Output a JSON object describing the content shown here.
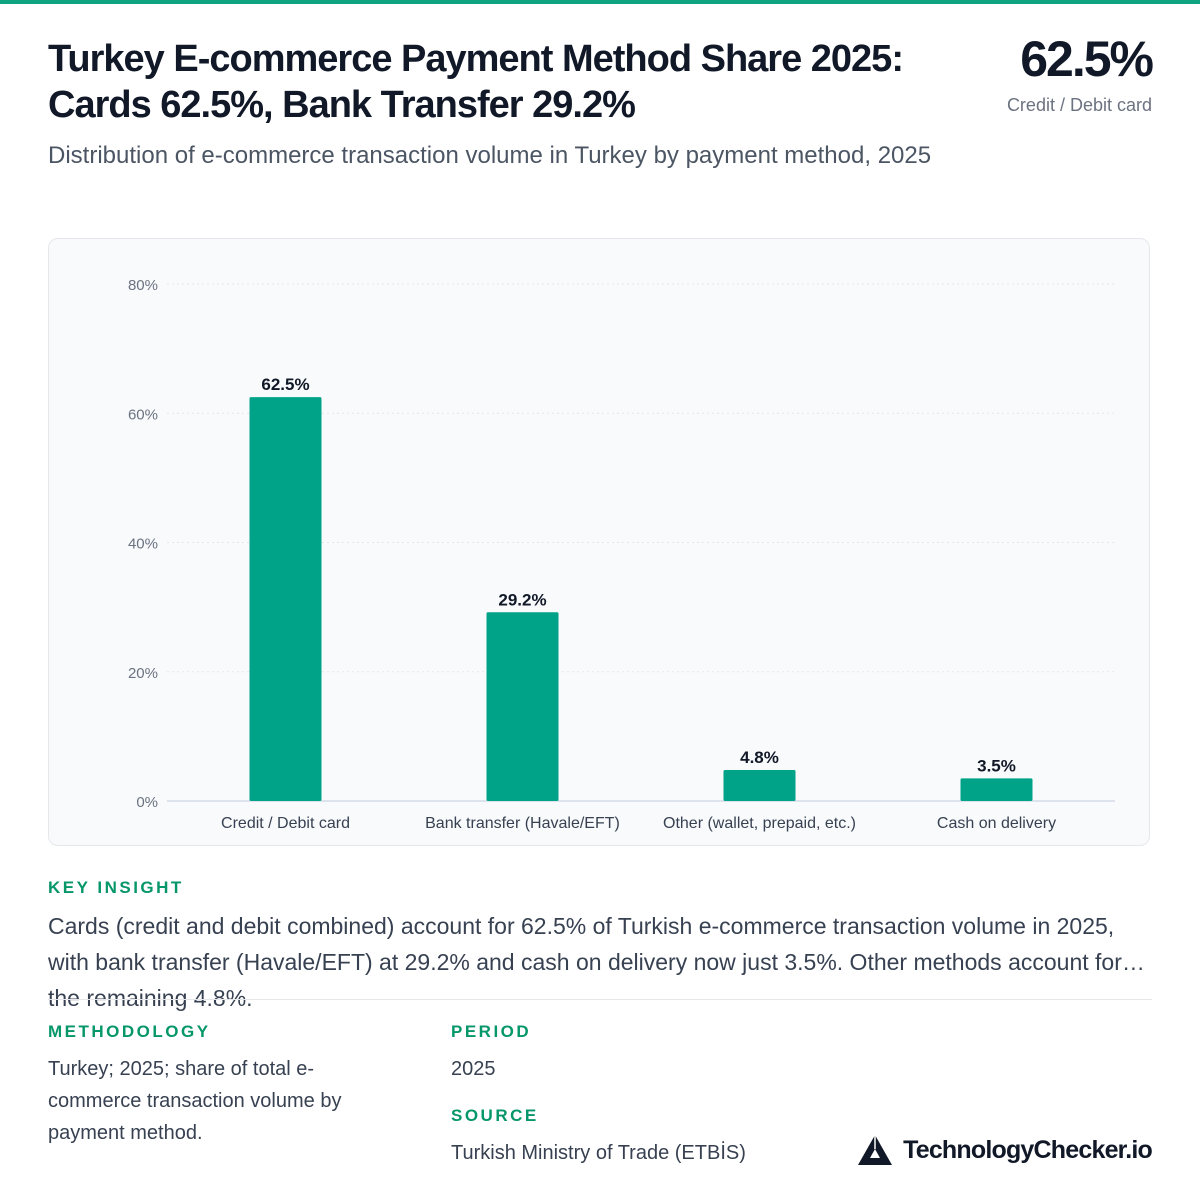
{
  "header": {
    "title": "Turkey E-commerce Payment Method Share 2025: Cards 62.5%, Bank Transfer 29.2%",
    "subtitle": "Distribution of e-commerce transaction volume in Turkey by payment method, 2025",
    "kpi_value": "62.5%",
    "kpi_label": "Credit / Debit card"
  },
  "colors": {
    "accent": "#059669",
    "bar": "#00a388",
    "topline": "#10a37f"
  },
  "chart_data": {
    "type": "bar",
    "categories": [
      "Credit / Debit card",
      "Bank transfer (Havale/EFT)",
      "Other (wallet, prepaid, etc.)",
      "Cash on delivery"
    ],
    "values": [
      62.5,
      29.2,
      4.8,
      3.5
    ],
    "value_labels": [
      "62.5%",
      "29.2%",
      "4.8%",
      "3.5%"
    ],
    "ylim": [
      0,
      80
    ],
    "yticks": [
      0,
      20,
      40,
      60,
      80
    ],
    "ytick_labels": [
      "0%",
      "20%",
      "40%",
      "60%",
      "80%"
    ],
    "grid": true
  },
  "insight": {
    "label": "KEY INSIGHT",
    "text": "Cards (credit and debit combined) account for 62.5% of Turkish e-commerce transaction volume in 2025, with bank transfer (Havale/EFT) at 29.2% and cash on delivery now just 3.5%. Other methods account for the remaining 4.8%."
  },
  "footer": {
    "methodology_label": "METHODOLOGY",
    "methodology_text": "Turkey; 2025; share of total e-commerce transaction volume by payment method.",
    "period_label": "PERIOD",
    "period_text": "2025",
    "source_label": "SOURCE",
    "source_text": "Turkish Ministry of Trade (ETBİS)",
    "brand": "TechnologyChecker.io",
    "brand_icon": "triangle-logo-icon"
  }
}
